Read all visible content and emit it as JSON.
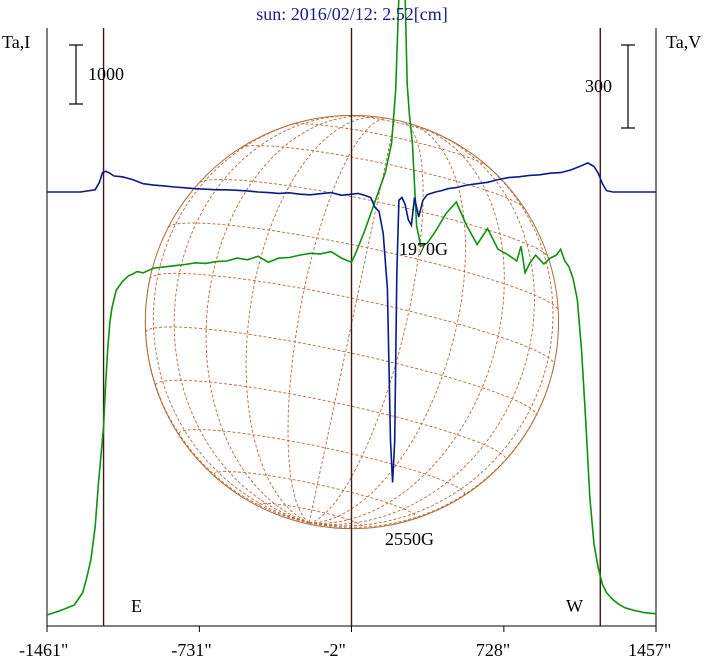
{
  "title": "sun: 2016/02/12: 2.52[cm]",
  "left_axis_label": "Ta,I",
  "right_axis_label": "Ta,V",
  "left_scale_label": "1000",
  "right_scale_label": "300",
  "east_label": "E",
  "west_label": "W",
  "annotations": {
    "upper": "1970G",
    "lower": "2550G"
  },
  "colors": {
    "title": "#1a1a8c",
    "frame": "#000000",
    "vertical_lines": "#3a1a12",
    "stokes_I": "#109010",
    "stokes_V": "#0a1a8c",
    "solar_disk": "#b36a3c"
  },
  "chart_data": {
    "type": "line",
    "title": "sun: 2016/02/12: 2.52[cm]",
    "xlabel": "",
    "ylabel_left": "Ta,I",
    "ylabel_right": "Ta,V",
    "x_unit": "arcsec",
    "xlim": [
      -1461,
      1457
    ],
    "x_ticks": [
      -1461,
      -731,
      -2,
      728,
      1457
    ],
    "x_tick_labels": [
      "-1461\"",
      "-731\"",
      "-2\"",
      "728\"",
      "1457\""
    ],
    "vertical_markers": [
      -1190,
      -2,
      1190
    ],
    "scale_bars": [
      {
        "axis": "left",
        "series": "I",
        "value": 1000,
        "label": "1000"
      },
      {
        "axis": "right",
        "series": "V",
        "value": 300,
        "label": "300"
      }
    ],
    "solar_disk_radius_arcsec": 990,
    "grid": false,
    "series": [
      {
        "name": "I",
        "axis": "left",
        "x": [
          -1461,
          -1400,
          -1330,
          -1290,
          -1270,
          -1250,
          -1230,
          -1215,
          -1200,
          -1190,
          -1180,
          -1170,
          -1160,
          -1150,
          -1130,
          -1100,
          -1070,
          -1050,
          -1030,
          -1000,
          -950,
          -900,
          -850,
          -800,
          -750,
          -700,
          -650,
          -600,
          -550,
          -500,
          -450,
          -400,
          -350,
          -300,
          -250,
          -200,
          -150,
          -100,
          -50,
          -2,
          20,
          60,
          100,
          130,
          160,
          190,
          210,
          225,
          240,
          255,
          265,
          275,
          290,
          310,
          330,
          360,
          400,
          450,
          500,
          550,
          600,
          650,
          700,
          750,
          790,
          810,
          830,
          850,
          880,
          920,
          950,
          980,
          1000,
          1020,
          1040,
          1060,
          1080,
          1100,
          1120,
          1140,
          1160,
          1180,
          1200,
          1220,
          1250,
          1280,
          1310,
          1350,
          1400,
          1457
        ],
        "values": [
          0,
          70,
          170,
          380,
          640,
          950,
          1500,
          2200,
          2800,
          3200,
          3900,
          4500,
          4950,
          5200,
          5500,
          5650,
          5750,
          5780,
          5820,
          5800,
          5880,
          5900,
          5920,
          5940,
          5970,
          5960,
          5990,
          6000,
          6050,
          6020,
          6080,
          5980,
          6050,
          6060,
          6100,
          6130,
          6120,
          6160,
          6050,
          5980,
          6150,
          6500,
          6900,
          7200,
          7500,
          8000,
          8900,
          10500,
          11600,
          10500,
          9000,
          8500,
          8000,
          6600,
          6250,
          6300,
          6500,
          6800,
          7000,
          6600,
          6280,
          6550,
          6200,
          6100,
          6000,
          6250,
          5800,
          5950,
          6100,
          5950,
          6050,
          6100,
          6200,
          6000,
          5900,
          5700,
          5350,
          4500,
          3300,
          2000,
          1200,
          800,
          520,
          380,
          260,
          180,
          120,
          80,
          40,
          20
        ],
        "color": "#109010"
      },
      {
        "name": "V",
        "axis": "right",
        "x": [
          -1461,
          -1300,
          -1230,
          -1210,
          -1195,
          -1180,
          -1160,
          -1140,
          -1100,
          -1050,
          -1000,
          -950,
          -900,
          -850,
          -800,
          -750,
          -700,
          -650,
          -600,
          -550,
          -500,
          -450,
          -400,
          -350,
          -300,
          -250,
          -200,
          -150,
          -100,
          -50,
          -2,
          30,
          60,
          90,
          110,
          130,
          150,
          170,
          185,
          195,
          205,
          215,
          225,
          240,
          255,
          270,
          285,
          300,
          320,
          340,
          360,
          380,
          400,
          430,
          460,
          500,
          550,
          600,
          650,
          700,
          750,
          800,
          850,
          900,
          950,
          1000,
          1050,
          1100,
          1130,
          1160,
          1180,
          1200,
          1220,
          1250,
          1300,
          1350,
          1400,
          1457
        ],
        "values": [
          0,
          0,
          8,
          35,
          70,
          75,
          68,
          58,
          55,
          45,
          30,
          25,
          22,
          18,
          15,
          12,
          10,
          8,
          8,
          6,
          4,
          0,
          -2,
          -5,
          -3,
          -8,
          -10,
          -6,
          -2,
          -12,
          -8,
          -5,
          -12,
          -20,
          -55,
          -70,
          -150,
          -350,
          -900,
          -1050,
          -900,
          -300,
          -30,
          -20,
          -45,
          -100,
          -120,
          -20,
          -90,
          -30,
          -10,
          -5,
          0,
          5,
          12,
          16,
          25,
          30,
          35,
          45,
          52,
          55,
          60,
          62,
          68,
          70,
          80,
          95,
          105,
          92,
          68,
          30,
          5,
          0,
          0,
          0,
          0,
          0
        ],
        "color": "#0a1a8c"
      }
    ]
  }
}
